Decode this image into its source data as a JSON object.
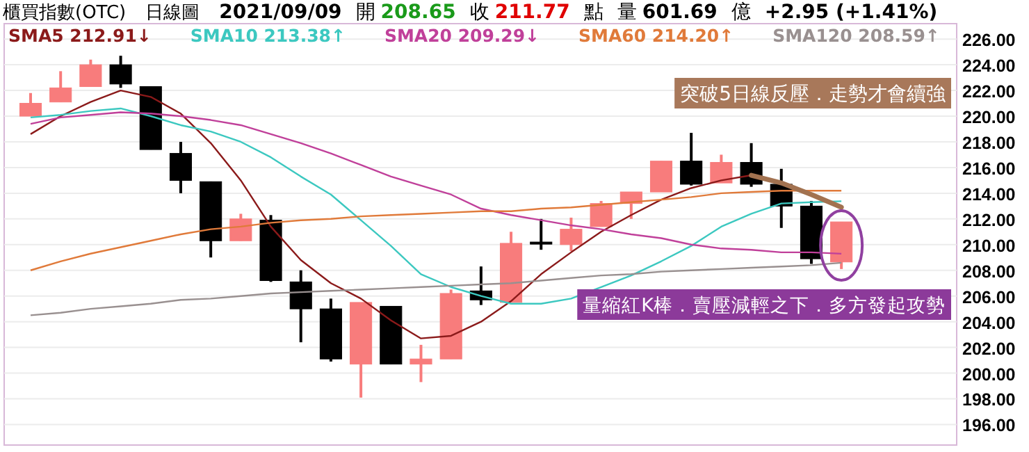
{
  "chart_data": {
    "type": "candlestick",
    "title": "櫃買指數(OTC)",
    "subtitle": "日線圖",
    "categories": [
      null,
      null,
      null,
      null,
      null,
      null,
      null,
      null,
      null,
      null,
      null,
      null,
      null,
      null,
      null,
      null,
      null,
      null,
      null,
      null,
      null,
      null,
      null,
      null,
      null,
      null,
      null,
      null
    ],
    "ohlc": [
      [
        220.0,
        221.8,
        220.0,
        221.0
      ],
      [
        221.1,
        223.5,
        221.1,
        222.2
      ],
      [
        222.3,
        224.4,
        222.3,
        224.0
      ],
      [
        224.0,
        224.7,
        222.2,
        222.5
      ],
      [
        222.3,
        222.3,
        217.4,
        217.4
      ],
      [
        217.1,
        218.0,
        214.0,
        215.0
      ],
      [
        214.9,
        214.9,
        209.0,
        210.3
      ],
      [
        210.3,
        212.4,
        210.3,
        212.0
      ],
      [
        211.9,
        212.3,
        207.1,
        207.2
      ],
      [
        207.1,
        208.0,
        202.4,
        205.0
      ],
      [
        205.0,
        205.8,
        200.9,
        201.1
      ],
      [
        200.7,
        205.5,
        198.1,
        205.5
      ],
      [
        205.2,
        205.2,
        200.7,
        200.7
      ],
      [
        200.7,
        202.2,
        199.3,
        201.1
      ],
      [
        201.1,
        206.5,
        201.1,
        206.2
      ],
      [
        206.4,
        208.3,
        205.3,
        205.7
      ],
      [
        205.5,
        211.0,
        205.5,
        210.1
      ],
      [
        210.2,
        212.0,
        209.6,
        210.1
      ],
      [
        210.0,
        212.1,
        209.5,
        211.2
      ],
      [
        211.4,
        213.4,
        211.4,
        213.2
      ],
      [
        213.2,
        214.1,
        212.0,
        214.1
      ],
      [
        214.1,
        216.5,
        214.1,
        216.5
      ],
      [
        216.5,
        218.7,
        214.6,
        214.7
      ],
      [
        214.8,
        217.0,
        214.8,
        216.4
      ],
      [
        216.4,
        217.9,
        214.5,
        214.7
      ],
      [
        214.7,
        215.9,
        211.3,
        213.0
      ],
      [
        213.0,
        213.4,
        208.5,
        208.9
      ],
      [
        208.65,
        211.77,
        208.1,
        211.77
      ]
    ],
    "colors": [
      "#f87c7c",
      "#f87c7c",
      "#f87c7c",
      "#000000",
      "#000000",
      "#000000",
      "#000000",
      "#f87c7c",
      "#000000",
      "#000000",
      "#000000",
      "#f87c7c",
      "#000000",
      "#f87c7c",
      "#f87c7c",
      "#000000",
      "#f87c7c",
      "#000000",
      "#f87c7c",
      "#f87c7c",
      "#f87c7c",
      "#f87c7c",
      "#000000",
      "#f87c7c",
      "#000000",
      "#000000",
      "#000000",
      "#f87c7c"
    ],
    "series": [
      {
        "name": "SMA5 212.91↓",
        "type": "line",
        "color": "#8b1a1a",
        "values": [
          218.6,
          220.0,
          221.1,
          222.0,
          221.5,
          220.2,
          217.9,
          215.0,
          211.4,
          208.8,
          207.0,
          205.8,
          204.1,
          202.7,
          202.9,
          204.0,
          205.6,
          207.7,
          209.4,
          211.0,
          212.3,
          213.5,
          214.4,
          215.0,
          215.4,
          214.8,
          213.9,
          212.91
        ]
      },
      {
        "name": "SMA10 213.38↑",
        "type": "line",
        "color": "#3cc8c0",
        "values": [
          219.9,
          220.1,
          220.4,
          220.6,
          220.0,
          219.3,
          218.8,
          218.0,
          216.8,
          215.3,
          213.9,
          211.9,
          209.9,
          207.7,
          206.7,
          206.0,
          205.4,
          205.4,
          205.8,
          206.7,
          207.6,
          208.7,
          209.9,
          211.4,
          212.4,
          213.2,
          213.3,
          213.38
        ]
      },
      {
        "name": "SMA20 209.29↓",
        "type": "line",
        "color": "#c0409a",
        "values": [
          219.4,
          219.9,
          220.1,
          220.3,
          220.2,
          220.0,
          219.7,
          219.3,
          218.6,
          217.9,
          217.1,
          216.2,
          215.3,
          214.6,
          213.9,
          212.8,
          212.3,
          211.9,
          211.5,
          211.2,
          210.8,
          210.5,
          210.0,
          209.7,
          209.6,
          209.4,
          209.4,
          209.29
        ]
      },
      {
        "name": "SMA60 214.20↑",
        "type": "line",
        "color": "#e07a3a",
        "values": [
          208.0,
          208.7,
          209.3,
          209.8,
          210.3,
          210.8,
          211.2,
          211.4,
          211.7,
          211.9,
          212.0,
          212.2,
          212.3,
          212.4,
          212.5,
          212.6,
          212.6,
          212.8,
          212.9,
          213.1,
          213.3,
          213.5,
          213.7,
          214.0,
          214.1,
          214.2,
          214.2,
          214.2
        ]
      },
      {
        "name": "SMA120 208.59↑",
        "type": "line",
        "color": "#999090",
        "values": [
          204.5,
          204.7,
          205.0,
          205.2,
          205.4,
          205.7,
          205.8,
          206.0,
          206.2,
          206.3,
          206.4,
          206.5,
          206.6,
          206.7,
          206.8,
          206.9,
          207.0,
          207.2,
          207.4,
          207.6,
          207.7,
          207.9,
          208.0,
          208.1,
          208.2,
          208.3,
          208.4,
          208.59
        ]
      }
    ],
    "ylim": [
      194.4,
      227.2
    ],
    "yticks": [
      {
        "value": 196,
        "label": "196.00"
      },
      {
        "value": 198,
        "label": "198.00"
      },
      {
        "value": 200,
        "label": "200.00"
      },
      {
        "value": 202,
        "label": "202.00"
      },
      {
        "value": 204,
        "label": "204.00"
      },
      {
        "value": 206,
        "label": "206.00"
      },
      {
        "value": 208,
        "label": "208.00"
      },
      {
        "value": 210,
        "label": "210.00"
      },
      {
        "value": 212,
        "label": "212.00"
      },
      {
        "value": 214,
        "label": "214.00"
      },
      {
        "value": 216,
        "label": "216.00"
      },
      {
        "value": 218,
        "label": "218.00"
      },
      {
        "value": 220,
        "label": "220.00"
      },
      {
        "value": 222,
        "label": "222.00"
      },
      {
        "value": 224,
        "label": "224.00"
      },
      {
        "value": 226,
        "label": "226.00"
      }
    ],
    "grid": "y",
    "legend": "top left",
    "annotations": [
      "2021/09/09",
      "開",
      "208.65",
      "收",
      "211.77",
      "點",
      "量",
      "601.69",
      "億",
      "+2.95 (+1.41%)",
      "突破5日線反壓．走勢才會續強",
      "量縮紅K棒．賣壓減輕之下．多方發起攻勢"
    ]
  }
}
